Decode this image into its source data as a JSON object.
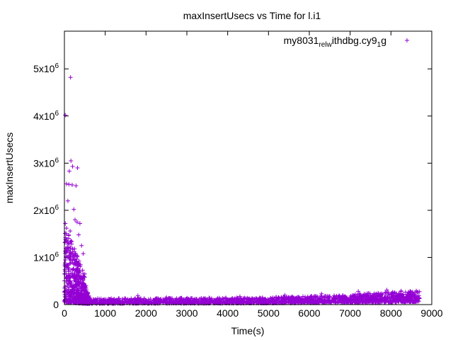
{
  "chart_data": {
    "type": "scatter",
    "title": "maxInsertUsecs vs Time for l.i1",
    "xlabel": "Time(s)",
    "ylabel": "maxInsertUsecs",
    "xlim": [
      0,
      9000
    ],
    "ylim": [
      0,
      5800000
    ],
    "xticks": [
      0,
      1000,
      2000,
      3000,
      4000,
      5000,
      6000,
      7000,
      8000,
      9000
    ],
    "yticks": [
      {
        "value": 0,
        "base": "0",
        "exp": ""
      },
      {
        "value": 1000000,
        "base": "1x10",
        "exp": "6"
      },
      {
        "value": 2000000,
        "base": "2x10",
        "exp": "6"
      },
      {
        "value": 3000000,
        "base": "3x10",
        "exp": "6"
      },
      {
        "value": 4000000,
        "base": "4x10",
        "exp": "6"
      },
      {
        "value": 5000000,
        "base": "5x10",
        "exp": "6"
      }
    ],
    "grid": false,
    "legend": "top-right",
    "marker": "+",
    "color": "#9400d3",
    "series": [
      {
        "name": "my8031_rel_withdbg.cy9_1_g",
        "name_parts": [
          {
            "text": "my8031",
            "shift": "none"
          },
          {
            "text": "rel",
            "shift": "sub"
          },
          {
            "text": "w",
            "shift": "sub"
          },
          {
            "text": "ithdbg.cy9",
            "shift": "none"
          },
          {
            "text": "1",
            "shift": "sub"
          },
          {
            "text": "g",
            "shift": "none"
          }
        ],
        "highlights": [
          [
            20,
            4020000
          ],
          [
            150,
            4820000
          ],
          [
            160,
            3050000
          ],
          [
            200,
            2930000
          ],
          [
            320,
            2900000
          ],
          [
            50,
            2560000
          ],
          [
            110,
            2550000
          ],
          [
            190,
            2540000
          ],
          [
            285,
            2520000
          ],
          [
            120,
            2830000
          ],
          [
            85,
            2200000
          ],
          [
            230,
            2020000
          ],
          [
            260,
            1800000
          ],
          [
            310,
            1750000
          ],
          [
            380,
            1720000
          ],
          [
            30,
            1420000
          ],
          [
            140,
            1560000
          ],
          [
            350,
            1480000
          ],
          [
            420,
            1250000
          ],
          [
            460,
            1080000
          ],
          [
            240,
            960000
          ],
          [
            500,
            650000
          ],
          [
            530,
            400000
          ],
          [
            560,
            240000
          ],
          [
            600,
            160000
          ],
          [
            1800,
            190000
          ],
          [
            2500,
            150000
          ],
          [
            4300,
            170000
          ],
          [
            5400,
            200000
          ],
          [
            6300,
            230000
          ],
          [
            7200,
            280000
          ],
          [
            7900,
            310000
          ],
          [
            8250,
            290000
          ],
          [
            8600,
            260000
          ]
        ],
        "dense_regions": [
          {
            "x": [
              0,
              500
            ],
            "y_low": [
              50000,
              20000
            ],
            "y_high": [
              1800000,
              600000
            ],
            "count": 520
          },
          {
            "x": [
              500,
              620
            ],
            "y_low": [
              20000,
              20000
            ],
            "y_high": [
              450000,
              150000
            ],
            "count": 90
          },
          {
            "x": [
              600,
              5000
            ],
            "y_low": [
              20000,
              30000
            ],
            "y_high": [
              130000,
              150000
            ],
            "count": 800
          },
          {
            "x": [
              5000,
              7000
            ],
            "y_low": [
              30000,
              40000
            ],
            "y_high": [
              160000,
              200000
            ],
            "count": 450
          },
          {
            "x": [
              7000,
              8700
            ],
            "y_low": [
              40000,
              60000
            ],
            "y_high": [
              220000,
              300000
            ],
            "count": 520
          }
        ]
      }
    ]
  }
}
